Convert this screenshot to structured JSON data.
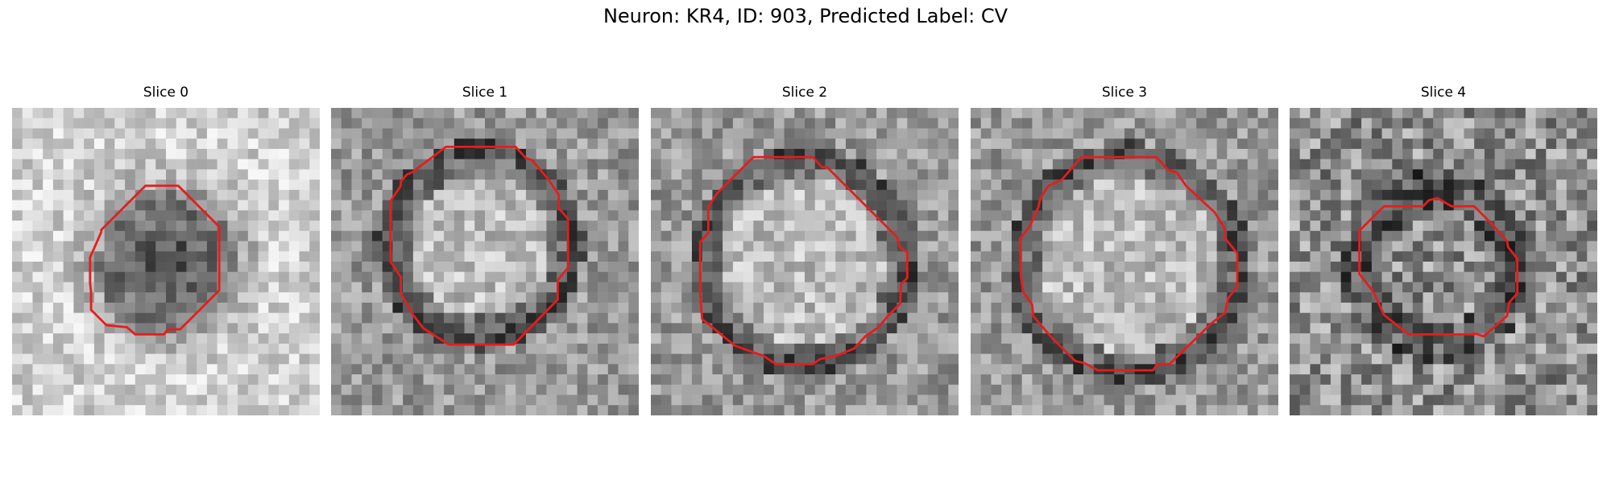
{
  "figure": {
    "title": "Neuron: KR4, ID: 903, Predicted Label: CV",
    "outline_color": "#e81c1c"
  },
  "panels": [
    {
      "title": "Slice 0",
      "blob": "dark"
    },
    {
      "title": "Slice 1",
      "blob": "light"
    },
    {
      "title": "Slice 2",
      "blob": "light"
    },
    {
      "title": "Slice 3",
      "blob": "light"
    },
    {
      "title": "Slice 4",
      "blob": "mixed"
    }
  ]
}
